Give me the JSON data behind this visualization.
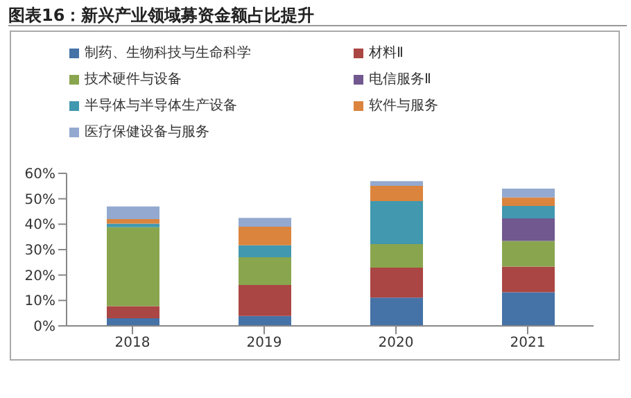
{
  "chart_data": {
    "type": "bar",
    "title": "图表16：新兴产业领域募资金额占比提升",
    "stacked": true,
    "legend": "top",
    "grid": false,
    "categories": [
      "2018",
      "2019",
      "2020",
      "2021"
    ],
    "series": [
      {
        "name": "制药、生物科技与生命科学",
        "color": "#4572a7",
        "values": [
          3.0,
          3.9,
          11.1,
          13.2
        ]
      },
      {
        "name": "材料Ⅱ",
        "color": "#aa4643",
        "values": [
          4.8,
          12.2,
          11.8,
          10.1
        ]
      },
      {
        "name": "技术硬件与设备",
        "color": "#89a54e",
        "values": [
          31.0,
          10.9,
          9.3,
          10.1
        ]
      },
      {
        "name": "电信服务Ⅱ",
        "color": "#71588f",
        "values": [
          0,
          0,
          0,
          8.9
        ]
      },
      {
        "name": "半导体与半导体生产设备",
        "color": "#4198af",
        "values": [
          1.4,
          4.7,
          16.9,
          4.9
        ]
      },
      {
        "name": "软件与服务",
        "color": "#db843d",
        "values": [
          1.8,
          7.3,
          6.0,
          3.3
        ]
      },
      {
        "name": "医疗保健设备与服务",
        "color": "#93a9cf",
        "values": [
          5.0,
          3.5,
          1.8,
          3.5
        ]
      }
    ],
    "ylim": [
      0,
      60
    ],
    "yticks": [
      {
        "value": 0,
        "label": "0%"
      },
      {
        "value": 10,
        "label": "10%"
      },
      {
        "value": 20,
        "label": "20%"
      },
      {
        "value": 30,
        "label": "30%"
      },
      {
        "value": 40,
        "label": "40%"
      },
      {
        "value": 50,
        "label": "50%"
      },
      {
        "value": 60,
        "label": "60%"
      }
    ]
  }
}
